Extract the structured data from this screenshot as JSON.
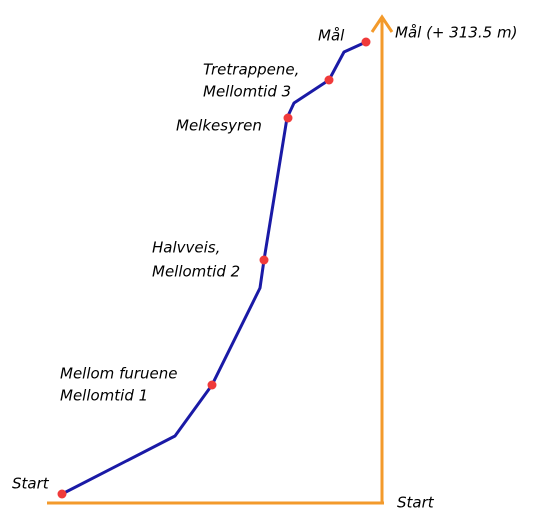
{
  "checkpoints": [
    {
      "label": [
        "Start"
      ]
    },
    {
      "label": [
        "Mellom furuene",
        "Mellomtid 1"
      ]
    },
    {
      "label": [
        "Halvveis,",
        "Mellomtid 2"
      ]
    },
    {
      "label": [
        "Melkesyren"
      ]
    },
    {
      "label": [
        "Tretrappene,",
        "Mellomtid 3"
      ]
    },
    {
      "label": [
        "Mål"
      ]
    }
  ],
  "axis": {
    "top_label": "Mål (+ 313.5 m)",
    "bottom_label": "Start"
  }
}
